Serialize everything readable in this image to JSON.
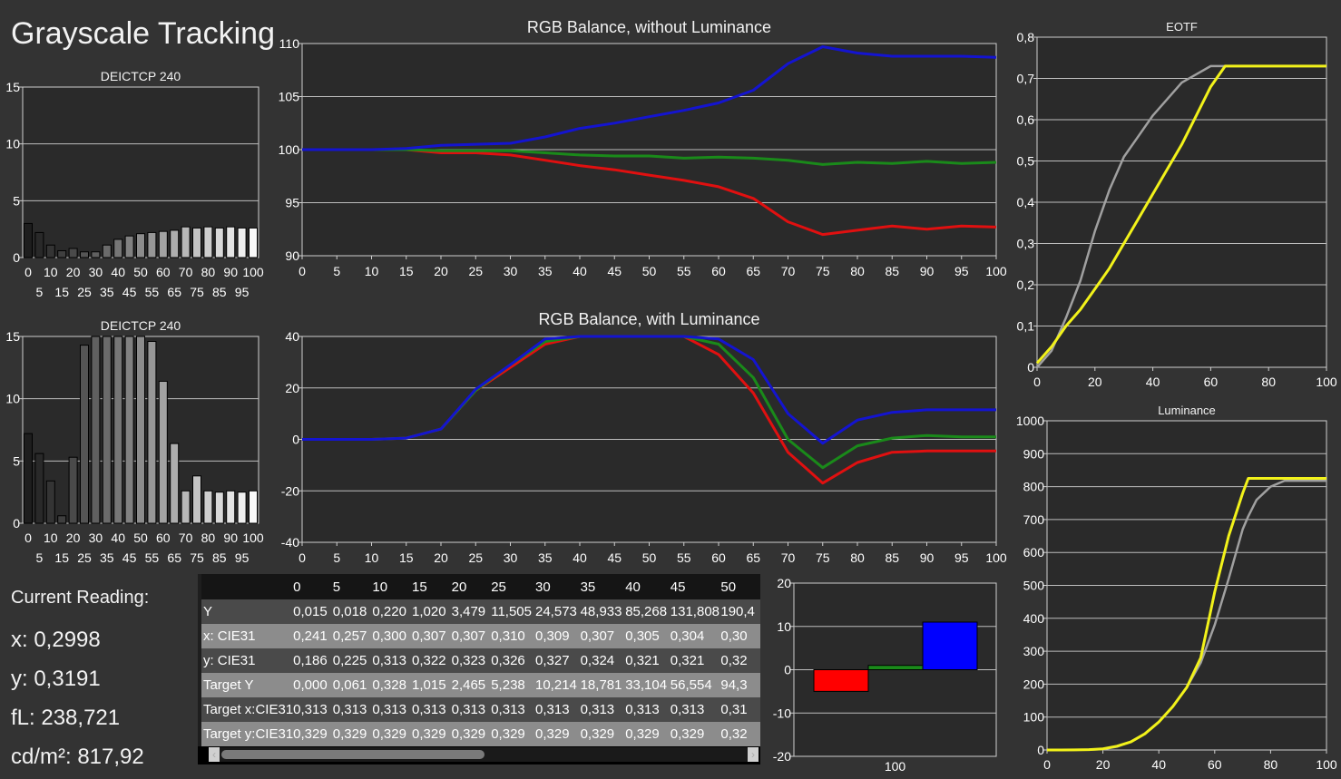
{
  "page": {
    "title": "Grayscale Tracking"
  },
  "reading": {
    "heading": "Current Reading:",
    "x": "x: 0,2998",
    "y": "y: 0,3191",
    "fl": "fL: 238,721",
    "cdm2": "cd/m²: 817,92"
  },
  "table": {
    "columns": [
      "0",
      "5",
      "10",
      "15",
      "20",
      "25",
      "30",
      "35",
      "40",
      "45",
      "50"
    ],
    "rows": [
      {
        "label": "Y",
        "values": [
          "0,015",
          "0,018",
          "0,220",
          "1,020",
          "3,479",
          "11,505",
          "24,573",
          "48,933",
          "85,268",
          "131,808",
          "190,4"
        ]
      },
      {
        "label": "x: CIE31",
        "values": [
          "0,241",
          "0,257",
          "0,300",
          "0,307",
          "0,307",
          "0,310",
          "0,309",
          "0,307",
          "0,305",
          "0,304",
          "0,30"
        ]
      },
      {
        "label": "y: CIE31",
        "values": [
          "0,186",
          "0,225",
          "0,313",
          "0,322",
          "0,323",
          "0,326",
          "0,327",
          "0,324",
          "0,321",
          "0,321",
          "0,32"
        ]
      },
      {
        "label": "Target Y",
        "values": [
          "0,000",
          "0,061",
          "0,328",
          "1,015",
          "2,465",
          "5,238",
          "10,214",
          "18,781",
          "33,104",
          "56,554",
          "94,3"
        ]
      },
      {
        "label": "Target x:CIE31",
        "values": [
          "0,313",
          "0,313",
          "0,313",
          "0,313",
          "0,313",
          "0,313",
          "0,313",
          "0,313",
          "0,313",
          "0,313",
          "0,31"
        ]
      },
      {
        "label": "Target y:CIE31",
        "values": [
          "0,329",
          "0,329",
          "0,329",
          "0,329",
          "0,329",
          "0,329",
          "0,329",
          "0,329",
          "0,329",
          "0,329",
          "0,32"
        ]
      }
    ]
  },
  "chart_data": [
    {
      "id": "deltae1",
      "type": "bar",
      "title": "DEICTCP 240",
      "x": [
        0,
        5,
        10,
        15,
        20,
        25,
        30,
        35,
        40,
        45,
        50,
        55,
        60,
        65,
        70,
        75,
        80,
        85,
        90,
        95,
        100
      ],
      "values": [
        3,
        2.2,
        1.1,
        0.6,
        0.8,
        0.5,
        0.5,
        1.1,
        1.6,
        1.9,
        2.1,
        2.2,
        2.3,
        2.4,
        2.7,
        2.6,
        2.7,
        2.6,
        2.7,
        2.6,
        2.6
      ],
      "ylim": [
        0,
        15
      ],
      "yticks": [
        "0",
        "5",
        "10",
        "15"
      ],
      "xticks_top": [
        "0",
        "10",
        "20",
        "30",
        "40",
        "50",
        "60",
        "70",
        "80",
        "90",
        "100"
      ],
      "xticks_bottom": [
        "5",
        "15",
        "25",
        "35",
        "45",
        "55",
        "65",
        "75",
        "85",
        "95"
      ]
    },
    {
      "id": "deltae2",
      "type": "bar",
      "title": "DEICTCP 240",
      "x": [
        0,
        5,
        10,
        15,
        20,
        25,
        30,
        35,
        40,
        45,
        50,
        55,
        60,
        65,
        70,
        75,
        80,
        85,
        90,
        95,
        100
      ],
      "values": [
        7.2,
        5.6,
        3.4,
        0.6,
        5.3,
        14.3,
        15,
        15,
        15,
        15,
        15,
        14.6,
        11.4,
        6.4,
        2.6,
        3.8,
        2.6,
        2.5,
        2.6,
        2.5,
        2.6
      ],
      "ylim": [
        0,
        15
      ],
      "yticks": [
        "0",
        "5",
        "10",
        "15"
      ],
      "xticks_top": [
        "0",
        "10",
        "20",
        "30",
        "40",
        "50",
        "60",
        "70",
        "80",
        "90",
        "100"
      ],
      "xticks_bottom": [
        "5",
        "15",
        "25",
        "35",
        "45",
        "55",
        "65",
        "75",
        "85",
        "95"
      ]
    },
    {
      "id": "rgb1",
      "type": "line",
      "title": "RGB Balance, without Luminance",
      "x": [
        0,
        5,
        10,
        15,
        20,
        25,
        30,
        35,
        40,
        45,
        50,
        55,
        60,
        65,
        70,
        75,
        80,
        85,
        90,
        95,
        100
      ],
      "ylim": [
        90,
        110
      ],
      "yticks": [
        "90",
        "95",
        "100",
        "105",
        "110"
      ],
      "xticks": [
        "0",
        "5",
        "10",
        "15",
        "20",
        "25",
        "30",
        "35",
        "40",
        "45",
        "50",
        "55",
        "60",
        "65",
        "70",
        "75",
        "80",
        "85",
        "90",
        "95",
        "100"
      ],
      "series": [
        {
          "color": "#e01010",
          "values": [
            100,
            100,
            100,
            100,
            99.7,
            99.7,
            99.5,
            99,
            98.5,
            98.1,
            97.6,
            97.1,
            96.5,
            95.4,
            93.2,
            92,
            92.4,
            92.8,
            92.5,
            92.8,
            92.7
          ]
        },
        {
          "color": "#1a8a1a",
          "values": [
            100,
            100,
            100,
            100,
            99.9,
            99.9,
            99.9,
            99.7,
            99.5,
            99.4,
            99.4,
            99.2,
            99.3,
            99.2,
            99,
            98.6,
            98.8,
            98.7,
            98.9,
            98.7,
            98.8
          ]
        },
        {
          "color": "#1414d0",
          "values": [
            100,
            100,
            100,
            100.1,
            100.4,
            100.5,
            100.6,
            101.2,
            102,
            102.5,
            103.1,
            103.7,
            104.4,
            105.6,
            108.1,
            109.7,
            109.1,
            108.8,
            108.8,
            108.8,
            108.7
          ]
        }
      ]
    },
    {
      "id": "rgb2",
      "type": "line",
      "title": "RGB Balance, with Luminance",
      "x": [
        0,
        5,
        10,
        15,
        20,
        25,
        30,
        35,
        40,
        45,
        50,
        55,
        60,
        65,
        70,
        75,
        80,
        85,
        90,
        95,
        100
      ],
      "ylim": [
        -40,
        40
      ],
      "yticks": [
        "-40",
        "-20",
        "0",
        "20",
        "40"
      ],
      "xticks": [
        "0",
        "5",
        "10",
        "15",
        "20",
        "25",
        "30",
        "35",
        "40",
        "45",
        "50",
        "55",
        "60",
        "65",
        "70",
        "75",
        "80",
        "85",
        "90",
        "95",
        "100"
      ],
      "series": [
        {
          "color": "#e01010",
          "values": [
            0,
            0,
            0,
            0.5,
            4,
            19,
            28,
            37,
            40,
            40,
            40,
            40,
            33,
            18,
            -5,
            -17,
            -9,
            -5,
            -4.5,
            -4.5,
            -4.5
          ]
        },
        {
          "color": "#1a8a1a",
          "values": [
            0,
            0,
            0,
            0.5,
            4,
            19,
            29,
            38,
            40,
            40,
            40,
            40,
            37,
            24,
            0,
            -11,
            -2.5,
            0.5,
            1.5,
            1,
            1
          ]
        },
        {
          "color": "#1414d0",
          "values": [
            0,
            0,
            0,
            0.5,
            4,
            19.5,
            29,
            39,
            40,
            40,
            40,
            40,
            39,
            31,
            10,
            -1.5,
            7.5,
            10.5,
            11.5,
            11.5,
            11.5
          ]
        }
      ]
    },
    {
      "id": "eotf",
      "type": "line",
      "title": "EOTF",
      "x": [
        0,
        5,
        10,
        15,
        20,
        25,
        30,
        35,
        40,
        45,
        50,
        55,
        60,
        65,
        70,
        75,
        80,
        85,
        90,
        95,
        100
      ],
      "ylim": [
        0,
        0.8
      ],
      "yticks": [
        "0",
        "0,1",
        "0,2",
        "0,3",
        "0,4",
        "0,5",
        "0,6",
        "0,7",
        "0,8"
      ],
      "xlim": [
        0,
        100
      ],
      "xticks": [
        "0",
        "20",
        "40",
        "60",
        "80",
        "100"
      ],
      "series": [
        {
          "color": "#a0a0a0",
          "values": [
            0,
            0.04,
            0.12,
            0.21,
            0.33,
            0.43,
            0.51,
            0.56,
            0.61,
            0.65,
            0.69,
            0.71,
            0.73,
            0.73,
            0.73,
            0.73,
            0.73,
            0.73,
            0.73,
            0.73,
            0.73
          ]
        },
        {
          "color": "#f2f21a",
          "values": [
            0.01,
            0.05,
            0.1,
            0.14,
            0.19,
            0.24,
            0.3,
            0.36,
            0.42,
            0.48,
            0.54,
            0.61,
            0.68,
            0.73,
            0.73,
            0.73,
            0.73,
            0.73,
            0.73,
            0.73,
            0.73
          ]
        }
      ]
    },
    {
      "id": "luminance",
      "type": "line",
      "title": "Luminance",
      "x": [
        0,
        5,
        10,
        15,
        20,
        25,
        30,
        35,
        40,
        45,
        50,
        55,
        60,
        65,
        70,
        72,
        75,
        80,
        85,
        90,
        95,
        100
      ],
      "ylim": [
        0,
        1000
      ],
      "yticks": [
        "0",
        "100",
        "200",
        "300",
        "400",
        "500",
        "600",
        "700",
        "800",
        "900",
        "1000"
      ],
      "xlim": [
        0,
        100
      ],
      "xticks": [
        "0",
        "20",
        "40",
        "60",
        "80",
        "100"
      ],
      "series": [
        {
          "color": "#a0a0a0",
          "values": [
            0,
            0.1,
            0.3,
            1,
            2.5,
            10,
            25,
            49,
            85,
            132,
            190,
            265,
            380,
            520,
            670,
            710,
            760,
            800,
            818,
            818,
            818,
            818
          ]
        },
        {
          "color": "#f2f21a",
          "values": [
            0,
            0.1,
            0.2,
            1,
            3.5,
            11.5,
            24.6,
            49,
            85,
            132,
            190,
            280,
            480,
            650,
            780,
            825,
            825,
            825,
            825,
            825,
            825,
            825
          ]
        }
      ]
    },
    {
      "id": "rgbbar",
      "type": "bar",
      "categories": [
        "R",
        "G",
        "B"
      ],
      "values": [
        -5,
        1,
        11
      ],
      "colors": [
        "#ff0000",
        "#1a8a1a",
        "#0000ff"
      ],
      "ylim": [
        -20,
        20
      ],
      "yticks": [
        "-20",
        "-10",
        "0",
        "10",
        "20"
      ],
      "xlabel": "100"
    }
  ]
}
